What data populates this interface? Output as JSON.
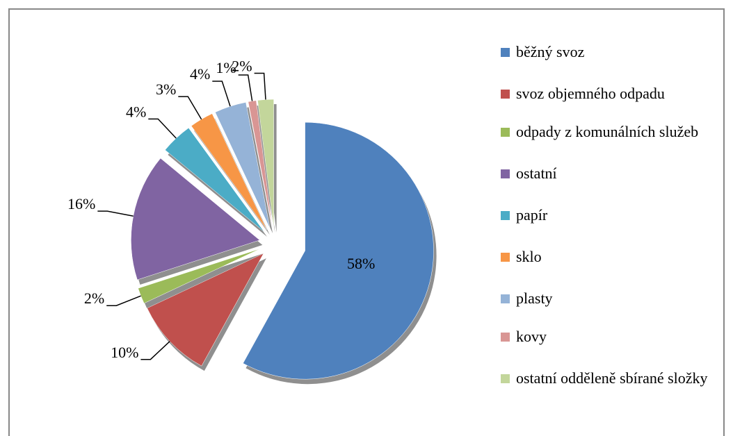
{
  "chart_data": {
    "type": "pie",
    "categories": [
      "běžný svoz",
      "svoz objemného odpadu",
      "odpady z komunálních služeb",
      "ostatní",
      "papír",
      "sklo",
      "plasty",
      "kovy",
      "ostatní odděleně sbírané složky"
    ],
    "values": [
      58,
      10,
      2,
      16,
      4,
      3,
      4,
      1,
      2
    ],
    "value_labels": [
      "58%",
      "10%",
      "2%",
      "16%",
      "4%",
      "3%",
      "4%",
      "1%",
      "2%"
    ],
    "colors": [
      "#4f81bd",
      "#c0504d",
      "#9bbb59",
      "#8064a2",
      "#4bacc6",
      "#f79646",
      "#95b3d7",
      "#d99694",
      "#c3d69b"
    ],
    "legend": "right"
  }
}
